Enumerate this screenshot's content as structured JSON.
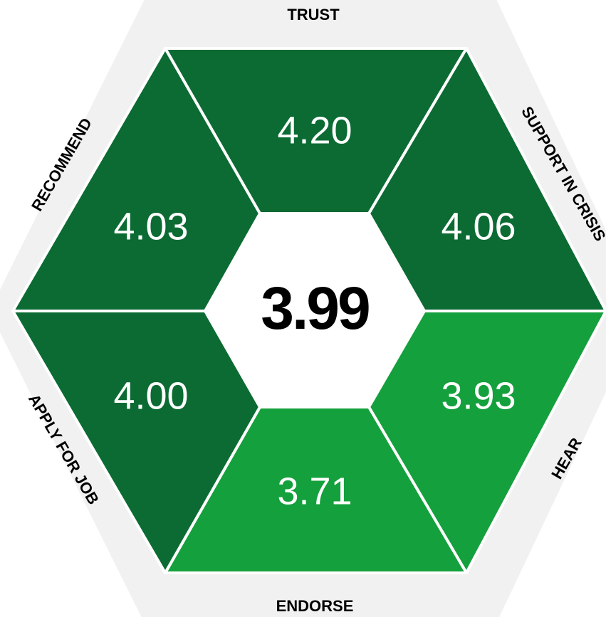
{
  "chart_data": {
    "type": "hexagon",
    "categories": [
      "TRUST",
      "SUPPORT IN CRISIS",
      "HEAR",
      "ENDORSE",
      "APPLY FOR JOB",
      "RECOMMEND"
    ],
    "values": [
      4.2,
      4.06,
      3.93,
      3.71,
      4,
      4.03
    ],
    "value_labels": [
      "4.20",
      "4.06",
      "3.93",
      "3.71",
      "4.00",
      "4.03"
    ],
    "colors": [
      "#0b6b33",
      "#0b6b33",
      "#14a03c",
      "#14a03c",
      "#0b6b33",
      "#0b6b33"
    ],
    "center_value": 3.99
  }
}
